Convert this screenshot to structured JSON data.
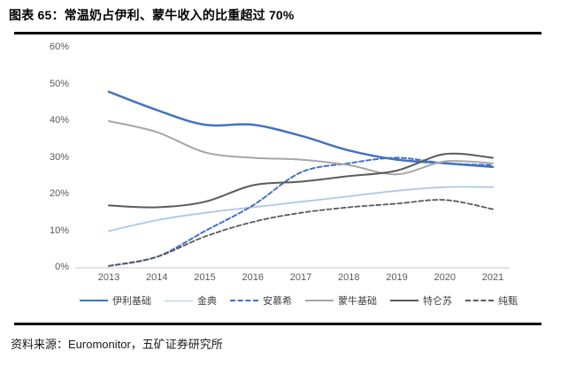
{
  "figure": {
    "title": "图表 65：常温奶占伊利、蒙牛收入的比重超过 70%",
    "source": "资料来源：Euromonitor，五矿证券研究所"
  },
  "chart_data": {
    "type": "line",
    "title": "常温奶占伊利、蒙牛收入的比重超过 70%",
    "x": [
      2013,
      2014,
      2015,
      2016,
      2017,
      2018,
      2019,
      2020,
      2021
    ],
    "x_labels": [
      "2013",
      "2014",
      "2015",
      "2016",
      "2017",
      "2018",
      "2019",
      "2020",
      "2021"
    ],
    "y_ticks": [
      "60%",
      "50%",
      "40%",
      "30%",
      "20%",
      "10%",
      "0%"
    ],
    "y_tick_values": [
      60,
      50,
      40,
      30,
      20,
      10,
      0
    ],
    "ylim": [
      0,
      60
    ],
    "xlabel": "",
    "ylabel": "",
    "grid": false,
    "legend_position": "bottom",
    "axis_color": "#c9c9c9",
    "series": [
      {
        "name": "伊利基础",
        "color": "#4472C4",
        "dash": false,
        "width": 2.5,
        "values": [
          48,
          43,
          39,
          39,
          36,
          32,
          29.5,
          28.5,
          27.5
        ]
      },
      {
        "name": "金典",
        "color": "#AFC6EA",
        "dash": false,
        "width": 1.8,
        "values": [
          10,
          13,
          15,
          16.5,
          18,
          19.5,
          21,
          22,
          22
        ]
      },
      {
        "name": "安慕希",
        "color": "#4472C4",
        "dash": true,
        "width": 2,
        "values": [
          0.5,
          3,
          10,
          17,
          26,
          28.5,
          30,
          28.5,
          28
        ]
      },
      {
        "name": "蒙牛基础",
        "color": "#A6A6A6",
        "dash": false,
        "width": 2,
        "values": [
          40,
          37,
          31.5,
          30,
          29.5,
          28,
          25.5,
          29,
          28.5
        ]
      },
      {
        "name": "特仑苏",
        "color": "#5A5A5A",
        "dash": false,
        "width": 2,
        "values": [
          17,
          16.5,
          18,
          22.5,
          23.5,
          25,
          26.5,
          31,
          30
        ]
      },
      {
        "name": "纯甄",
        "color": "#5A5A5A",
        "dash": true,
        "width": 1.8,
        "values": [
          0.5,
          3,
          8.5,
          12.5,
          15,
          16.5,
          17.5,
          18.5,
          16
        ]
      }
    ]
  }
}
